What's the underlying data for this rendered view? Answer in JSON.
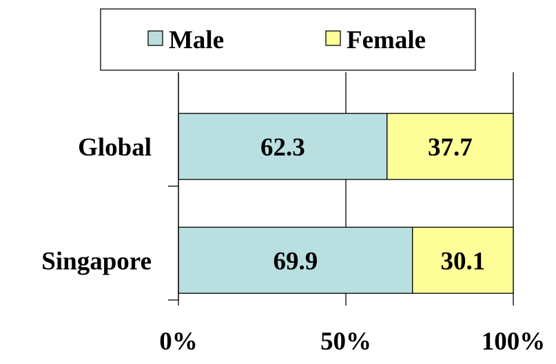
{
  "chart_data": {
    "type": "bar",
    "orientation": "horizontal",
    "stacked": true,
    "normalized": "percent",
    "categories": [
      "Global",
      "Singapore"
    ],
    "series": [
      {
        "name": "Male",
        "values": [
          62.3,
          69.9
        ],
        "color": "#b9dfe0"
      },
      {
        "name": "Female",
        "values": [
          37.7,
          30.1
        ],
        "color": "#ffff99"
      }
    ],
    "xlim": [
      0,
      100
    ],
    "xticks": [
      "0%",
      "50%",
      "100%"
    ],
    "grid": true,
    "legend_position": "top"
  }
}
